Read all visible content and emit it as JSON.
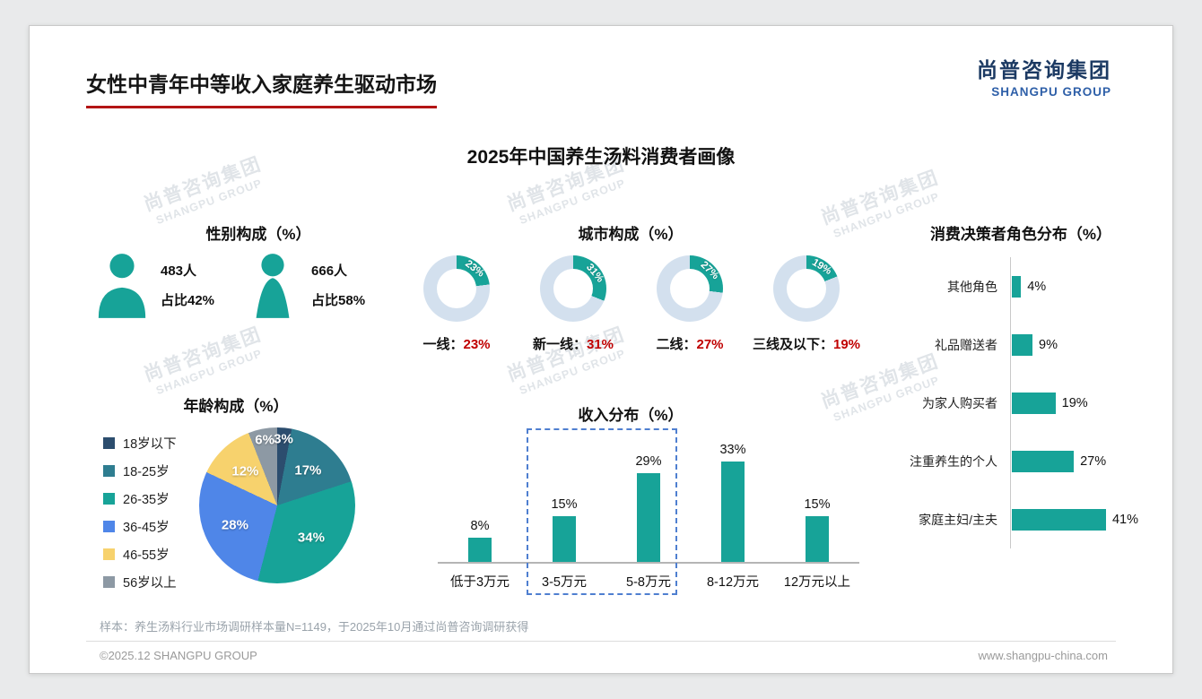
{
  "page": {
    "title": "女性中青年中等收入家庭养生驱动市场",
    "logo": {
      "cn": "尚普咨询集团",
      "en": "SHANGPU GROUP"
    },
    "watermark": {
      "cn": "尚普咨询集团",
      "en": "SHANGPU GROUP"
    },
    "sample_note": "样本：养生汤料行业市场调研样本量N=1149，于2025年10月通过尚普咨询调研获得",
    "copyright": "©2025.12 SHANGPU GROUP",
    "website": "www.shangpu-china.com"
  },
  "main_title": "2025年中国养生汤料消费者画像",
  "colors": {
    "teal": "#17a398",
    "donut_rest": "#d3e0ee",
    "red": "#c00000"
  },
  "chart_data": [
    {
      "id": "gender",
      "type": "pictogram",
      "title": "性别构成（%）",
      "items": [
        {
          "gender": "male",
          "count": "483人",
          "share": "占比42%"
        },
        {
          "gender": "female",
          "count": "666人",
          "share": "占比58%"
        }
      ]
    },
    {
      "id": "city",
      "type": "donut",
      "title": "城市构成（%）",
      "items": [
        {
          "label": "一线：",
          "value": 23,
          "value_label": "23%"
        },
        {
          "label": "新一线：",
          "value": 31,
          "value_label": "31%"
        },
        {
          "label": "二线：",
          "value": 27,
          "value_label": "27%"
        },
        {
          "label": "三线及以下：",
          "value": 19,
          "value_label": "19%"
        }
      ]
    },
    {
      "id": "age",
      "type": "pie",
      "title": "年龄构成（%）",
      "slices": [
        {
          "label": "18岁以下",
          "value": 3,
          "color": "#2c4d6e"
        },
        {
          "label": "18-25岁",
          "value": 17,
          "color": "#2e7d90"
        },
        {
          "label": "26-35岁",
          "value": 34,
          "color": "#17a398"
        },
        {
          "label": "36-45岁",
          "value": 28,
          "color": "#4f86e8"
        },
        {
          "label": "46-55岁",
          "value": 12,
          "color": "#f7d26d"
        },
        {
          "label": "56岁以上",
          "value": 6,
          "color": "#8d99a4"
        }
      ]
    },
    {
      "id": "income",
      "type": "bar",
      "title": "收入分布（%）",
      "categories": [
        "低于3万元",
        "3-5万元",
        "5-8万元",
        "8-12万元",
        "12万元以上"
      ],
      "values": [
        8,
        15,
        29,
        33,
        15
      ],
      "highlighted": [
        "3-5万元",
        "5-8万元"
      ],
      "ylim": [
        0,
        35
      ]
    },
    {
      "id": "roles",
      "type": "bar-horizontal",
      "title": "消费决策者角色分布（%）",
      "categories": [
        "其他角色",
        "礼品赠送者",
        "为家人购买者",
        "注重养生的个人",
        "家庭主妇/主夫"
      ],
      "values": [
        4,
        9,
        19,
        27,
        41
      ]
    }
  ]
}
